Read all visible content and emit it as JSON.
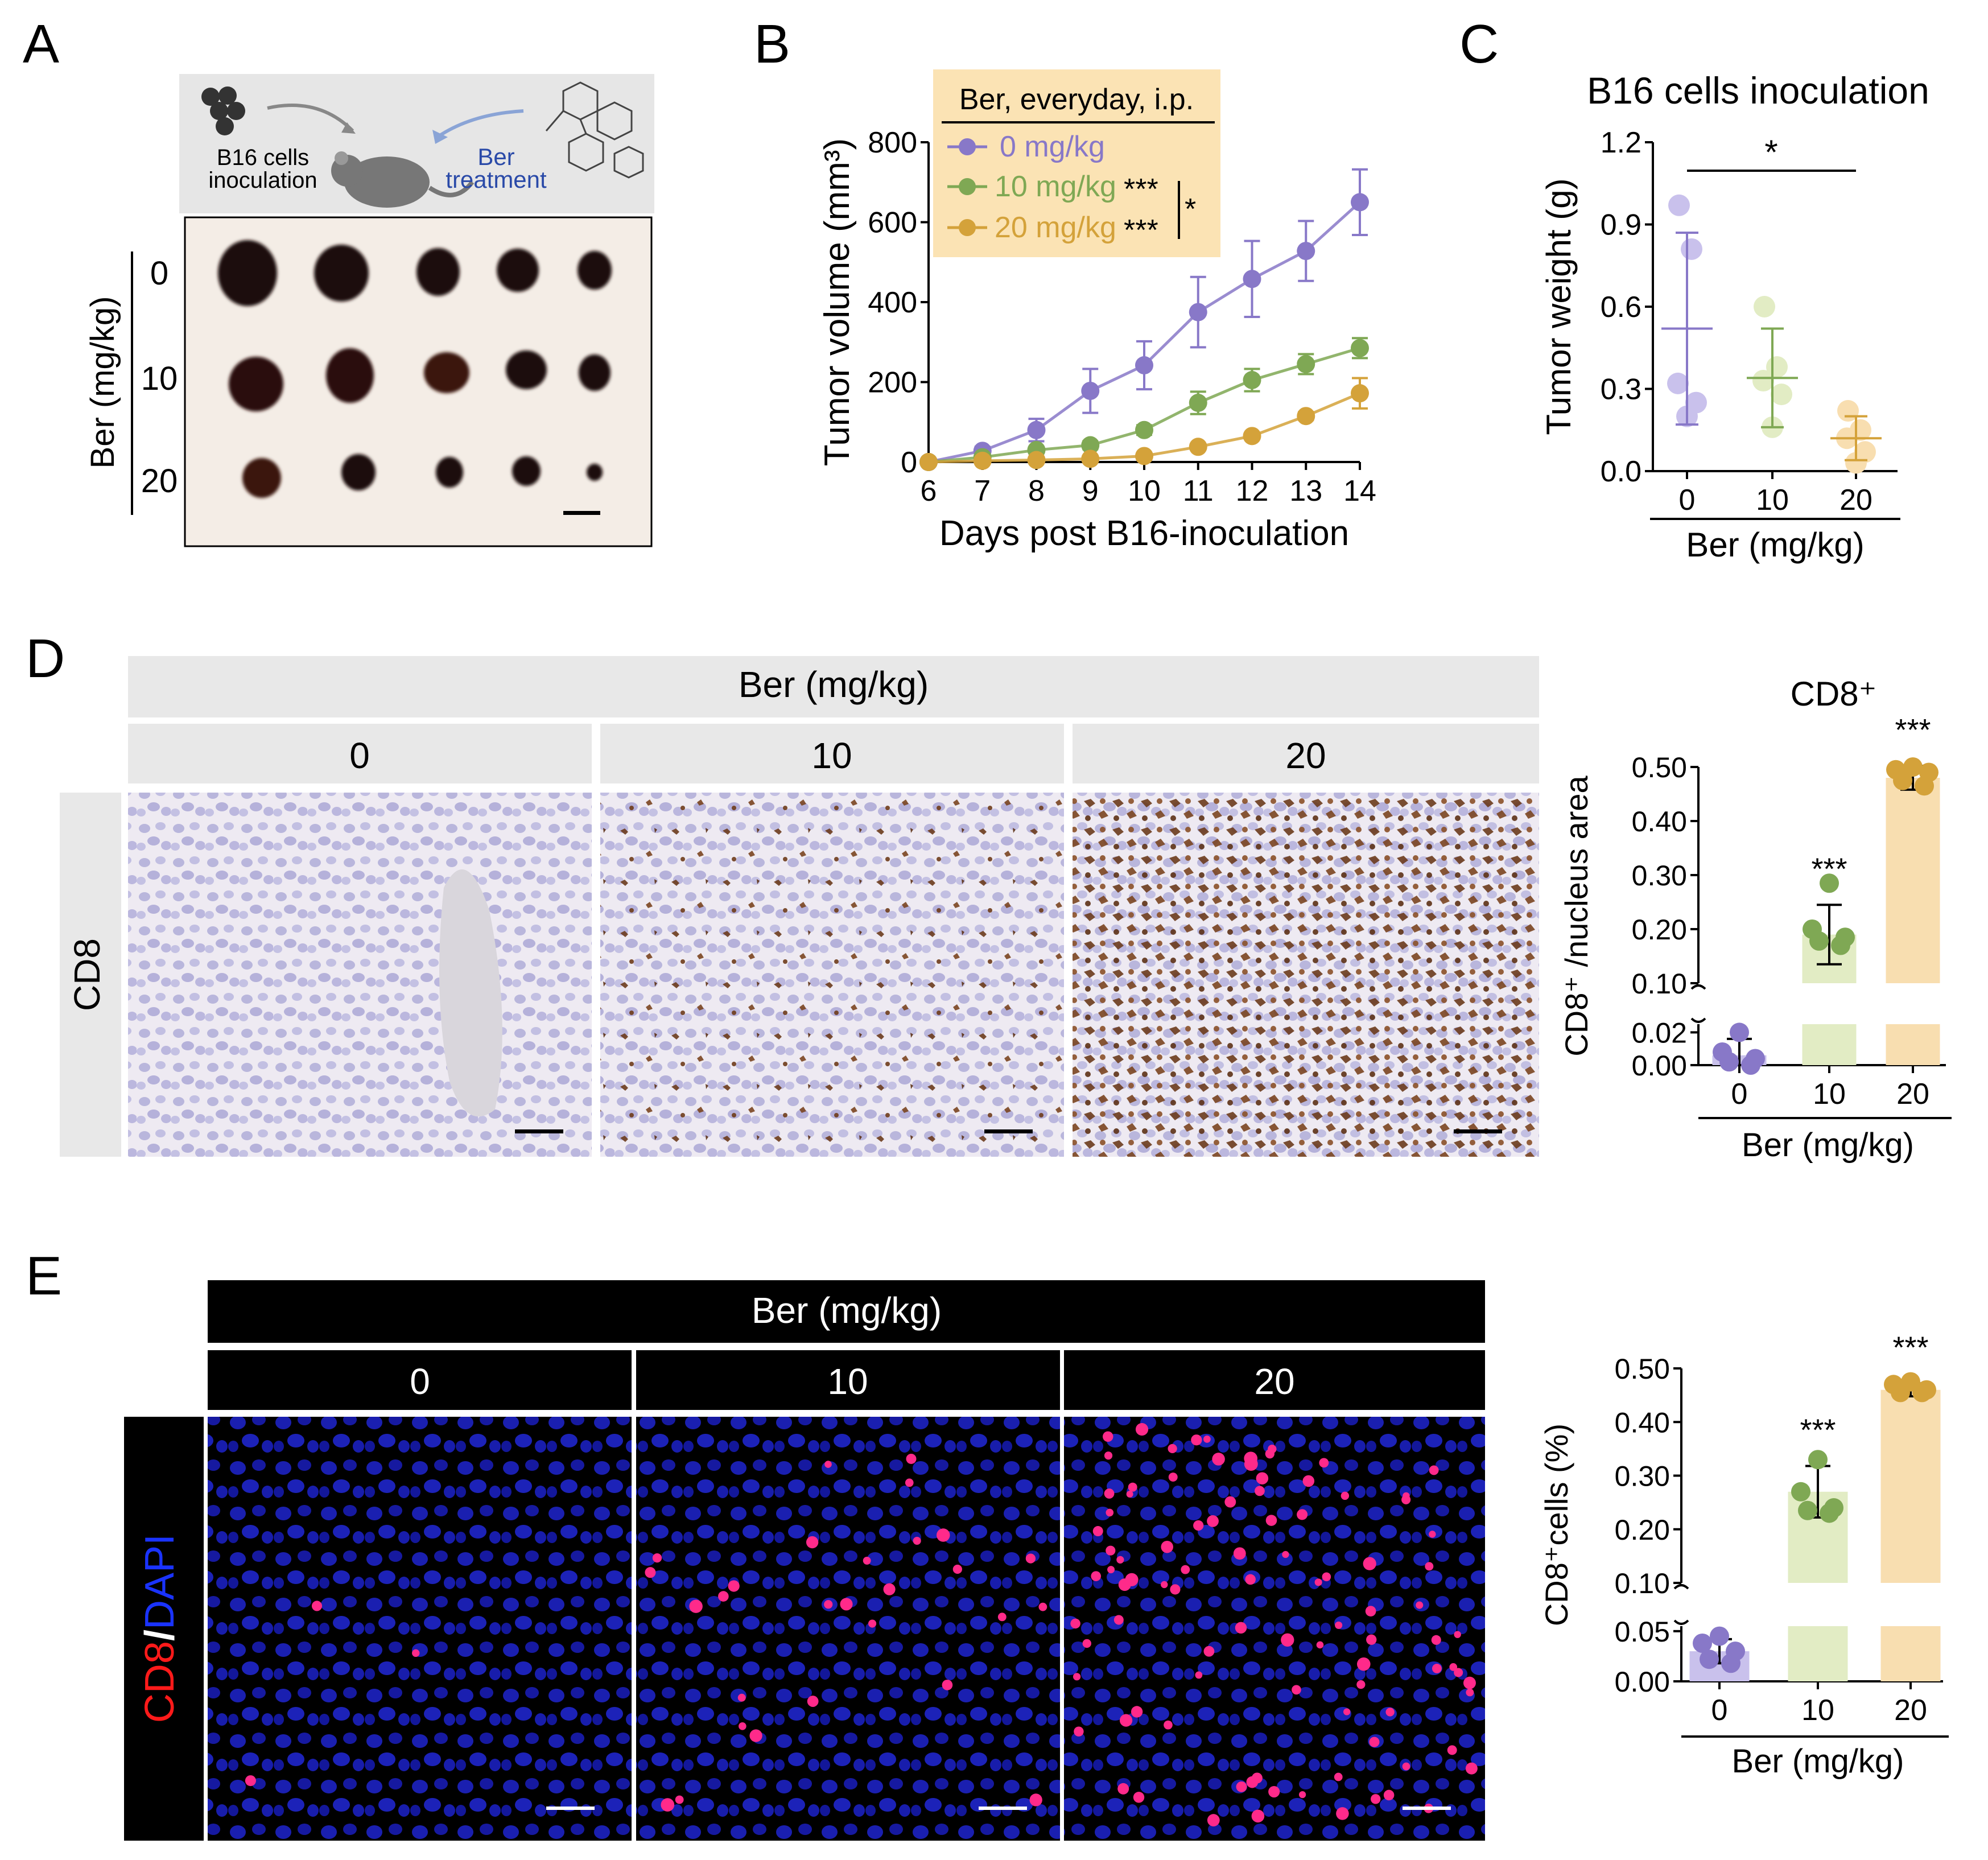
{
  "colors": {
    "c0": "#8878c8",
    "c10": "#7fa854",
    "c20": "#d4a23a",
    "c0_light": "#c9c1ec",
    "c10_light": "#e2ecc4",
    "c20_light": "#f8deb0",
    "legend_bg": "#fbe3b4",
    "hdr_gray": "#e8e8e8"
  },
  "panelA": {
    "letter": "A",
    "schematic": {
      "cells_label_1": "B16 cells",
      "cells_label_2": "inoculation",
      "ber_label_1": "Ber",
      "ber_label_2": "treatment"
    },
    "axis_label": "Ber (mg/kg)",
    "row_labels": [
      "0",
      "10",
      "20"
    ]
  },
  "panelB": {
    "letter": "B",
    "legend_title": "Ber, everyday, i.p.",
    "legend_items": [
      "0 mg/kg",
      "10 mg/kg",
      "20 mg/kg"
    ],
    "sig_10": "***",
    "sig_20": "***",
    "sig_between": "*",
    "chart_data": {
      "type": "line",
      "title": "",
      "xlabel": "Days post B16-inoculation",
      "ylabel": "Tumor volume (mm³)",
      "x": [
        6,
        7,
        8,
        9,
        10,
        11,
        12,
        13,
        14
      ],
      "xlim": [
        6,
        14
      ],
      "ylim": [
        0,
        800
      ],
      "yticks": [
        0,
        200,
        400,
        600,
        800
      ],
      "series": [
        {
          "name": "0 mg/kg",
          "values": [
            0,
            28,
            80,
            178,
            242,
            375,
            458,
            528,
            650
          ],
          "err": [
            0,
            10,
            28,
            55,
            60,
            88,
            95,
            75,
            82
          ]
        },
        {
          "name": "10 mg/kg",
          "values": [
            0,
            12,
            30,
            42,
            80,
            148,
            205,
            245,
            285
          ],
          "err": [
            0,
            5,
            8,
            10,
            12,
            28,
            28,
            25,
            25
          ]
        },
        {
          "name": "20 mg/kg",
          "values": [
            0,
            3,
            5,
            8,
            15,
            38,
            65,
            115,
            172
          ],
          "err": [
            0,
            1,
            2,
            3,
            4,
            6,
            8,
            10,
            38
          ]
        }
      ]
    }
  },
  "panelC": {
    "letter": "C",
    "sig": "*",
    "chart_data": {
      "type": "scatter",
      "title": "B16 cells inoculation",
      "xlabel": "Ber (mg/kg)",
      "ylabel": "Tumor weight (g)",
      "categories": [
        "0",
        "10",
        "20"
      ],
      "ylim": [
        0,
        1.2
      ],
      "yticks": [
        "0.0",
        "0.3",
        "0.6",
        "0.9",
        "1.2"
      ],
      "points": [
        [
          0.97,
          0.81,
          0.32,
          0.25,
          0.2
        ],
        [
          0.6,
          0.38,
          0.33,
          0.28,
          0.16
        ],
        [
          0.22,
          0.15,
          0.12,
          0.07,
          0.03
        ]
      ],
      "mean": [
        0.52,
        0.34,
        0.12
      ],
      "sd": [
        0.35,
        0.18,
        0.08
      ]
    }
  },
  "panelD": {
    "letter": "D",
    "header": "Ber (mg/kg)",
    "columns": [
      "0",
      "10",
      "20"
    ],
    "row_label": "CD8",
    "chart_data": {
      "type": "bar",
      "title": "CD8⁺",
      "xlabel": "Ber (mg/kg)",
      "ylabel": "CD8⁺ /nucleus area",
      "categories": [
        "0",
        "10",
        "20"
      ],
      "values": [
        0.006,
        0.19,
        0.48
      ],
      "sd": [
        0.01,
        0.055,
        0.022
      ],
      "points": [
        [
          0.02,
          0.008,
          0.004,
          0.002,
          0.0
        ],
        [
          0.285,
          0.2,
          0.185,
          0.178,
          0.17
        ],
        [
          0.5,
          0.495,
          0.49,
          0.475,
          0.465
        ]
      ],
      "sig": [
        "",
        "***",
        "***"
      ],
      "yticks_low": [
        "0.00",
        "0.02"
      ],
      "yticks_high": [
        "0.10",
        "0.20",
        "0.30",
        "0.40",
        "0.50"
      ],
      "ylim_low": [
        0,
        0.025
      ],
      "ylim_high": [
        0.1,
        0.5
      ]
    }
  },
  "panelE": {
    "letter": "E",
    "header": "Ber (mg/kg)",
    "columns": [
      "0",
      "10",
      "20"
    ],
    "row_label_a": "CD8",
    "row_label_sep": "/",
    "row_label_b": "DAPI",
    "chart_data": {
      "type": "bar",
      "title": "",
      "xlabel": "Ber (mg/kg)",
      "ylabel": "CD8⁺cells (%)",
      "categories": [
        "0",
        "10",
        "20"
      ],
      "values": [
        0.03,
        0.27,
        0.46
      ],
      "sd": [
        0.012,
        0.048,
        0.012
      ],
      "points": [
        [
          0.045,
          0.038,
          0.03,
          0.022,
          0.018
        ],
        [
          0.33,
          0.27,
          0.24,
          0.235,
          0.23
        ],
        [
          0.475,
          0.47,
          0.46,
          0.455,
          0.455
        ]
      ],
      "sig": [
        "",
        "***",
        "***"
      ],
      "yticks_low": [
        "0.00",
        "0.05"
      ],
      "yticks_high": [
        "0.10",
        "0.20",
        "0.30",
        "0.40",
        "0.50"
      ],
      "ylim_low": [
        0,
        0.055
      ],
      "ylim_high": [
        0.1,
        0.5
      ]
    }
  }
}
